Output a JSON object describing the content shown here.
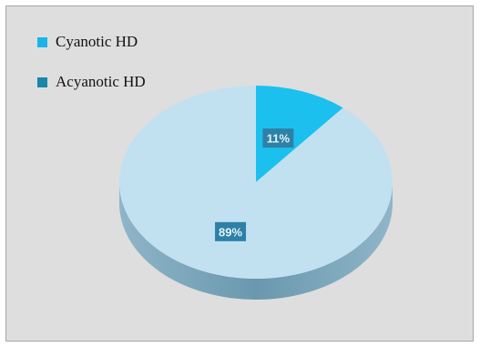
{
  "chart_data": {
    "type": "pie",
    "title": "",
    "categories": [
      "Cyanotic HD",
      "Acyanotic HD"
    ],
    "values": [
      11,
      89
    ],
    "data_labels": [
      "11%",
      "89%"
    ],
    "colors": [
      "#1cc0ee",
      "#c2e1f0"
    ],
    "legend_colors": [
      "#1ab4ea",
      "#1b86a8"
    ],
    "label_box_color": "#2f80a6",
    "side_color_dark": "#6a98ae",
    "side_color_light": "#8fb5c8",
    "background_color": "#dedede",
    "legend_position": "top-left"
  }
}
